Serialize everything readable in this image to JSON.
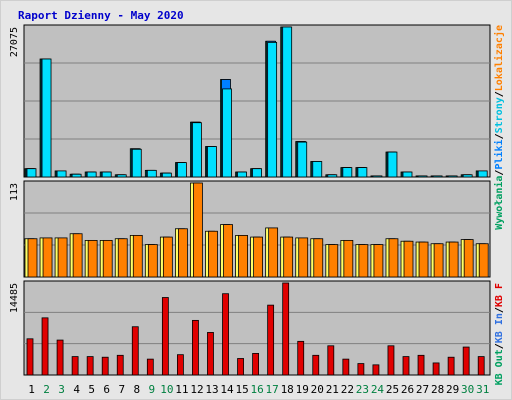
{
  "title": "Raport Dzienny -  May 2020",
  "colors": {
    "panel_bg": "#c0c0c0",
    "gridline": "#808080",
    "title": "#0000cc",
    "weekday_label": "#000000",
    "weekend_label": "#008040",
    "visits": "#00bfff",
    "hits": "#00c080",
    "pages": "#00e0ff",
    "files": "#0080ff",
    "sites": "#ff8000",
    "kb": "#e00000",
    "kb_out": "#00a060",
    "kb_in": "#3070e0"
  },
  "legend": {
    "top": [
      {
        "text": "Wywołania",
        "color": "#00a060"
      },
      {
        "text": "/",
        "color": "#000000"
      },
      {
        "text": "Pliki",
        "color": "#0080ff"
      },
      {
        "text": "/",
        "color": "#000000"
      },
      {
        "text": "Strony",
        "color": "#00c0e0"
      },
      {
        "text": "/",
        "color": "#000000"
      },
      {
        "text": "Lokalizacje",
        "color": "#ff8000"
      }
    ],
    "bottom": [
      {
        "text": "KB Out",
        "color": "#00a060"
      },
      {
        "text": "/",
        "color": "#000000"
      },
      {
        "text": "KB In",
        "color": "#3070e0"
      },
      {
        "text": "/",
        "color": "#000000"
      },
      {
        "text": "KB F",
        "color": "#e00000"
      }
    ]
  },
  "chart_data": [
    {
      "type": "bar",
      "panel": "top",
      "y_max_label": "27075",
      "ylim": [
        0,
        27075
      ],
      "categories": [
        "1",
        "2",
        "3",
        "4",
        "5",
        "6",
        "7",
        "8",
        "9",
        "10",
        "11",
        "12",
        "13",
        "14",
        "15",
        "16",
        "17",
        "18",
        "19",
        "20",
        "21",
        "22",
        "23",
        "24",
        "25",
        "26",
        "27",
        "28",
        "29",
        "30",
        "31"
      ],
      "weekend": [
        false,
        true,
        true,
        false,
        false,
        false,
        false,
        false,
        true,
        true,
        false,
        false,
        false,
        false,
        false,
        true,
        true,
        false,
        false,
        false,
        false,
        false,
        true,
        true,
        false,
        false,
        false,
        false,
        false,
        true,
        true
      ],
      "series": [
        {
          "values": [
            1500,
            21300,
            1100,
            500,
            900,
            900,
            400,
            5100,
            1200,
            700,
            2600,
            9900,
            5500,
            17600,
            900,
            1500,
            24500,
            27075,
            6400,
            2800,
            400,
            1700,
            1700,
            200,
            4500,
            900,
            200,
            200,
            200,
            400,
            1100
          ]
        },
        {
          "values": [
            1500,
            21300,
            1100,
            500,
            900,
            900,
            400,
            5100,
            1200,
            700,
            2600,
            9900,
            5500,
            17600,
            900,
            1500,
            24500,
            27075,
            6400,
            2800,
            400,
            1700,
            1700,
            200,
            4500,
            900,
            200,
            200,
            200,
            400,
            1100
          ]
        },
        {
          "values": [
            1500,
            21300,
            1100,
            500,
            900,
            900,
            400,
            5000,
            1200,
            700,
            2600,
            9800,
            5500,
            15900,
            900,
            1500,
            24300,
            27075,
            6300,
            2800,
            400,
            1700,
            1700,
            200,
            4500,
            900,
            200,
            200,
            200,
            400,
            1100
          ]
        }
      ]
    },
    {
      "type": "bar",
      "panel": "middle",
      "y_max_label": "113",
      "ylim": [
        0,
        113
      ],
      "categories": [
        "1",
        "2",
        "3",
        "4",
        "5",
        "6",
        "7",
        "8",
        "9",
        "10",
        "11",
        "12",
        "13",
        "14",
        "15",
        "16",
        "17",
        "18",
        "19",
        "20",
        "21",
        "22",
        "23",
        "24",
        "25",
        "26",
        "27",
        "28",
        "29",
        "30",
        "31"
      ],
      "series": [
        {
          "values": [
            46,
            47,
            47,
            52,
            44,
            44,
            46,
            50,
            39,
            48,
            58,
            113,
            55,
            63,
            50,
            48,
            59,
            48,
            47,
            46,
            39,
            44,
            39,
            39,
            46,
            43,
            42,
            40,
            42,
            45,
            40
          ]
        },
        {
          "values": [
            46,
            47,
            47,
            52,
            44,
            44,
            46,
            50,
            39,
            48,
            58,
            113,
            55,
            63,
            50,
            48,
            59,
            48,
            47,
            46,
            39,
            44,
            39,
            39,
            46,
            43,
            42,
            40,
            42,
            45,
            40
          ]
        }
      ]
    },
    {
      "type": "bar",
      "panel": "bottom",
      "y_max_label": "14485",
      "ylim": [
        0,
        14485
      ],
      "categories": [
        "1",
        "2",
        "3",
        "4",
        "5",
        "6",
        "7",
        "8",
        "9",
        "10",
        "11",
        "12",
        "13",
        "14",
        "15",
        "16",
        "17",
        "18",
        "19",
        "20",
        "21",
        "22",
        "23",
        "24",
        "25",
        "26",
        "27",
        "28",
        "29",
        "30",
        "31"
      ],
      "series": [
        {
          "values": [
            5700,
            9000,
            5500,
            2900,
            2900,
            2800,
            3100,
            7600,
            2500,
            12200,
            3200,
            8600,
            6700,
            12800,
            2600,
            3400,
            11000,
            14485,
            5300,
            3100,
            4600,
            2500,
            1800,
            1600,
            4600,
            2900,
            3100,
            1900,
            2800,
            4400,
            2900
          ]
        }
      ]
    }
  ]
}
